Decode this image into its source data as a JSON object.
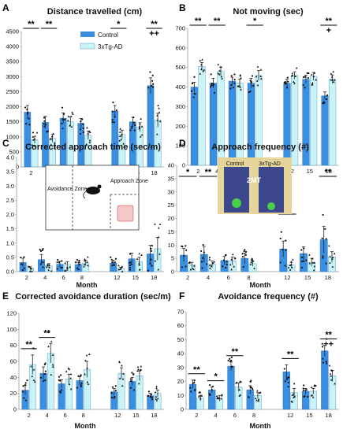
{
  "colors": {
    "control": "#3b8fe0",
    "tg": "#c9f3f6",
    "tg_stroke": "#5aa0c8"
  },
  "legend": {
    "control": "Control",
    "tg": "3xTg-AD"
  },
  "photo": {
    "control_label": "Control",
    "tg_label": "3xTg-AD",
    "scale_label": "2MT"
  },
  "schematic": {
    "avoid": "Avoidance Zone",
    "approach": "Approach Zone"
  },
  "chart_data": [
    {
      "panel": "A",
      "type": "bar",
      "title": "Distance travelled (cm)",
      "xlabel": "Month",
      "ylabel": "",
      "categories": [
        "2",
        "4",
        "6",
        "8",
        "12",
        "15",
        "18"
      ],
      "ylim": [
        0,
        4500
      ],
      "yticks": [
        0,
        500,
        1000,
        1500,
        2000,
        2500,
        3000,
        3500,
        4000,
        4500
      ],
      "series": [
        {
          "name": "Control",
          "values": [
            1820,
            1480,
            1620,
            1450,
            1850,
            1500,
            2700
          ],
          "errors": [
            220,
            200,
            170,
            160,
            190,
            150,
            260
          ]
        },
        {
          "name": "3xTg-AD",
          "values": [
            900,
            950,
            1500,
            1050,
            1080,
            1320,
            1550
          ],
          "errors": [
            120,
            130,
            160,
            140,
            140,
            150,
            230
          ]
        }
      ],
      "significance": [
        {
          "category": "2",
          "marks": [
            "**"
          ]
        },
        {
          "category": "4",
          "marks": [
            "**"
          ]
        },
        {
          "category": "12",
          "marks": [
            "*"
          ]
        },
        {
          "category": "18",
          "marks": [
            "**",
            "++"
          ]
        }
      ]
    },
    {
      "panel": "B",
      "type": "bar",
      "title": "Not moving (sec)",
      "xlabel": "Month",
      "ylabel": "",
      "categories": [
        "2",
        "4",
        "6",
        "8",
        "12",
        "15",
        "18"
      ],
      "ylim": [
        0,
        700
      ],
      "yticks": [
        0,
        100,
        200,
        300,
        400,
        500,
        600,
        700
      ],
      "series": [
        {
          "name": "Control",
          "values": [
            400,
            420,
            430,
            420,
            420,
            440,
            355
          ],
          "errors": [
            25,
            25,
            20,
            25,
            20,
            20,
            20
          ]
        },
        {
          "name": "3xTg-AD",
          "values": [
            505,
            480,
            420,
            460,
            460,
            455,
            440
          ],
          "errors": [
            20,
            22,
            20,
            25,
            18,
            20,
            22
          ]
        }
      ],
      "significance": [
        {
          "category": "2",
          "marks": [
            "**"
          ]
        },
        {
          "category": "4",
          "marks": [
            "**"
          ]
        },
        {
          "category": "8",
          "marks": [
            "*"
          ]
        },
        {
          "category": "18",
          "marks": [
            "**",
            "+"
          ]
        }
      ]
    },
    {
      "panel": "C",
      "type": "bar",
      "title": "Corrected approach time (sec/m)",
      "xlabel": "Month",
      "ylabel": "",
      "categories": [
        "2",
        "4",
        "6",
        "8",
        "12",
        "15",
        "18"
      ],
      "ylim": [
        0,
        4.0
      ],
      "yticks": [
        0,
        0.5,
        1.0,
        1.5,
        2.0,
        2.5,
        3.0,
        3.5,
        4.0
      ],
      "series": [
        {
          "name": "Control",
          "values": [
            0.32,
            0.42,
            0.26,
            0.25,
            0.3,
            0.45,
            0.62
          ],
          "errors": [
            0.15,
            0.18,
            0.1,
            0.08,
            0.1,
            0.2,
            0.3
          ]
        },
        {
          "name": "3xTg-AD",
          "values": [
            0.12,
            0.2,
            0.25,
            0.3,
            0.1,
            0.35,
            0.8
          ],
          "errors": [
            0.05,
            0.08,
            0.1,
            0.1,
            0.05,
            0.15,
            0.4
          ]
        }
      ],
      "significance": []
    },
    {
      "panel": "D",
      "type": "bar",
      "title": "Approach frequency (#)",
      "xlabel": "Month",
      "ylabel": "",
      "categories": [
        "2",
        "4",
        "6",
        "8",
        "12",
        "15",
        "18"
      ],
      "ylim": [
        0,
        40
      ],
      "yticks": [
        0,
        5,
        10,
        15,
        20,
        25,
        30,
        35,
        40
      ],
      "series": [
        {
          "name": "Control",
          "values": [
            6.2,
            6.5,
            4.2,
            5.0,
            8.5,
            6.8,
            12.0
          ],
          "errors": [
            2.5,
            3,
            1.5,
            2,
            3,
            2.5,
            5
          ]
        },
        {
          "name": "3xTg-AD",
          "values": [
            2.5,
            2.8,
            4.0,
            3.0,
            2.5,
            3.5,
            5.5
          ],
          "errors": [
            1,
            1.2,
            1.5,
            1,
            1,
            1.5,
            2
          ]
        }
      ],
      "significance": [
        {
          "category": "2",
          "marks": [
            "*"
          ]
        },
        {
          "category": "4",
          "marks": [
            "**"
          ]
        },
        {
          "category": "12",
          "marks": [
            "*"
          ]
        },
        {
          "category": "18",
          "marks": [
            "**"
          ]
        }
      ]
    },
    {
      "panel": "E",
      "type": "bar",
      "title": "Corrected avoidance duration (sec/m)",
      "xlabel": "Month",
      "ylabel": "",
      "categories": [
        "2",
        "4",
        "6",
        "8",
        "12",
        "15",
        "18"
      ],
      "ylim": [
        0,
        120
      ],
      "yticks": [
        0,
        20,
        40,
        60,
        80,
        100,
        120
      ],
      "series": [
        {
          "name": "Control",
          "values": [
            24,
            45,
            32,
            36,
            22,
            35,
            17
          ],
          "errors": [
            6,
            8,
            5,
            5,
            4,
            5,
            3
          ]
        },
        {
          "name": "3xTg-AD",
          "values": [
            56,
            70,
            38,
            50,
            45,
            42,
            20
          ],
          "errors": [
            12,
            12,
            6,
            10,
            7,
            6,
            4
          ]
        }
      ],
      "significance": [
        {
          "category": "2",
          "marks": [
            "**"
          ]
        },
        {
          "category": "4",
          "marks": [
            "**"
          ]
        }
      ]
    },
    {
      "panel": "F",
      "type": "bar",
      "title": "Avoidance frequency (#)",
      "xlabel": "Month",
      "ylabel": "",
      "categories": [
        "2",
        "4",
        "6",
        "8",
        "12",
        "15",
        "18"
      ],
      "ylim": [
        0,
        70
      ],
      "yticks": [
        0,
        10,
        20,
        30,
        40,
        50,
        60,
        70
      ],
      "series": [
        {
          "name": "Control",
          "values": [
            18,
            14,
            31,
            14,
            27,
            13,
            42
          ],
          "errors": [
            3,
            2,
            3,
            3,
            5,
            2,
            4
          ]
        },
        {
          "name": "3xTg-AD",
          "values": [
            8,
            8,
            16,
            10,
            12,
            13,
            24
          ],
          "errors": [
            2,
            2,
            3,
            2,
            3,
            2,
            4
          ]
        }
      ],
      "significance": [
        {
          "category": "2",
          "marks": [
            "**"
          ]
        },
        {
          "category": "4",
          "marks": [
            "*"
          ]
        },
        {
          "category": "6",
          "marks": [
            "**"
          ]
        },
        {
          "category": "12",
          "marks": [
            "**"
          ]
        },
        {
          "category": "18",
          "marks": [
            "**",
            "++"
          ]
        }
      ]
    }
  ]
}
